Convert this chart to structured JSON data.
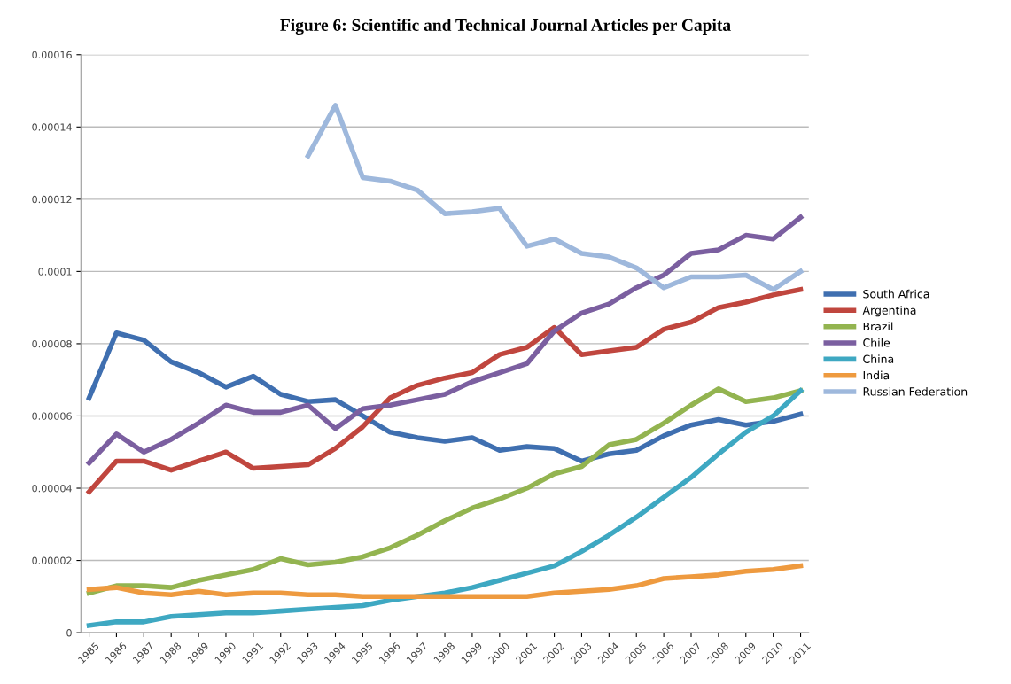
{
  "chart_data": {
    "type": "line",
    "title": "Figure 6: Scientific and Technical Journal Articles per Capita",
    "categories": [
      "1985",
      "1986",
      "1987",
      "1988",
      "1989",
      "1990",
      "1991",
      "1992",
      "1993",
      "1994",
      "1995",
      "1996",
      "1997",
      "1998",
      "1999",
      "2000",
      "2001",
      "2002",
      "2003",
      "2004",
      "2005",
      "2006",
      "2007",
      "2008",
      "2009",
      "2010",
      "2011"
    ],
    "series": [
      {
        "name": "South Africa",
        "color": "#3f6fb0",
        "values": [
          6.5e-05,
          8.3e-05,
          8.1e-05,
          7.5e-05,
          7.2e-05,
          6.8e-05,
          7.1e-05,
          6.6e-05,
          6.4e-05,
          6.45e-05,
          6e-05,
          5.55e-05,
          5.4e-05,
          5.3e-05,
          5.4e-05,
          5.05e-05,
          5.15e-05,
          5.1e-05,
          4.75e-05,
          4.95e-05,
          5.05e-05,
          5.45e-05,
          5.75e-05,
          5.9e-05,
          5.75e-05,
          5.85e-05,
          6.05e-05
        ]
      },
      {
        "name": "Argentina",
        "color": "#c0463e",
        "values": [
          3.9e-05,
          4.75e-05,
          4.75e-05,
          4.5e-05,
          4.75e-05,
          5e-05,
          4.55e-05,
          4.6e-05,
          4.65e-05,
          5.1e-05,
          5.7e-05,
          6.5e-05,
          6.85e-05,
          7.05e-05,
          7.2e-05,
          7.7e-05,
          7.9e-05,
          8.45e-05,
          7.7e-05,
          7.8e-05,
          7.9e-05,
          8.4e-05,
          8.6e-05,
          9e-05,
          9.15e-05,
          9.35e-05,
          9.5e-05
        ]
      },
      {
        "name": "Brazil",
        "color": "#93b450",
        "values": [
          1.1e-05,
          1.3e-05,
          1.3e-05,
          1.25e-05,
          1.45e-05,
          1.6e-05,
          1.75e-05,
          2.05e-05,
          1.88e-05,
          1.95e-05,
          2.1e-05,
          2.35e-05,
          2.7e-05,
          3.1e-05,
          3.45e-05,
          3.7e-05,
          4e-05,
          4.4e-05,
          4.6e-05,
          5.2e-05,
          5.35e-05,
          5.8e-05,
          6.3e-05,
          6.75e-05,
          6.4e-05,
          6.5e-05,
          6.7e-05
        ]
      },
      {
        "name": "Chile",
        "color": "#7b5fa0",
        "values": [
          4.7e-05,
          5.5e-05,
          5e-05,
          5.35e-05,
          5.8e-05,
          6.3e-05,
          6.1e-05,
          6.1e-05,
          6.3e-05,
          5.65e-05,
          6.2e-05,
          6.3e-05,
          6.45e-05,
          6.6e-05,
          6.95e-05,
          7.2e-05,
          7.45e-05,
          8.35e-05,
          8.85e-05,
          9.1e-05,
          9.55e-05,
          9.9e-05,
          0.000105,
          0.000106,
          0.00011,
          0.000109,
          0.000115
        ]
      },
      {
        "name": "China",
        "color": "#3ea8c2",
        "values": [
          2e-06,
          3e-06,
          3e-06,
          4.5e-06,
          5e-06,
          5.5e-06,
          5.5e-06,
          6e-06,
          6.5e-06,
          7e-06,
          7.5e-06,
          9e-06,
          1e-05,
          1.1e-05,
          1.25e-05,
          1.45e-05,
          1.65e-05,
          1.85e-05,
          2.25e-05,
          2.7e-05,
          3.2e-05,
          3.75e-05,
          4.3e-05,
          4.95e-05,
          5.55e-05,
          6e-05,
          6.7e-05
        ]
      },
      {
        "name": "India",
        "color": "#ee9a3f",
        "values": [
          1.2e-05,
          1.25e-05,
          1.1e-05,
          1.05e-05,
          1.15e-05,
          1.05e-05,
          1.1e-05,
          1.1e-05,
          1.05e-05,
          1.05e-05,
          1e-05,
          1e-05,
          1e-05,
          1e-05,
          1e-05,
          1e-05,
          1e-05,
          1.1e-05,
          1.15e-05,
          1.2e-05,
          1.3e-05,
          1.5e-05,
          1.55e-05,
          1.6e-05,
          1.7e-05,
          1.75e-05,
          1.85e-05
        ]
      },
      {
        "name": "Russian Federation",
        "color": "#9eb8dc",
        "values": [
          null,
          null,
          null,
          null,
          null,
          null,
          null,
          null,
          0.000132,
          0.000146,
          0.000126,
          0.000125,
          0.0001225,
          0.000116,
          0.0001165,
          0.0001175,
          0.000107,
          0.000109,
          0.000105,
          0.000104,
          0.000101,
          9.55e-05,
          9.85e-05,
          9.85e-05,
          9.9e-05,
          9.5e-05,
          0.0001
        ]
      }
    ],
    "ylim": [
      0,
      0.00016
    ],
    "yticks": [
      {
        "value": 0,
        "label": "0"
      },
      {
        "value": 2e-05,
        "label": "0.00002"
      },
      {
        "value": 4e-05,
        "label": "0.00004"
      },
      {
        "value": 6e-05,
        "label": "0.00006"
      },
      {
        "value": 8e-05,
        "label": "0.00008"
      },
      {
        "value": 0.0001,
        "label": "0.0001"
      },
      {
        "value": 0.00012,
        "label": "0.00012"
      },
      {
        "value": 0.00014,
        "label": "0.00014"
      },
      {
        "value": 0.00016,
        "label": "0.00016"
      }
    ],
    "grid": "y",
    "legend": "right",
    "marker": "none",
    "line_style": "solid"
  }
}
